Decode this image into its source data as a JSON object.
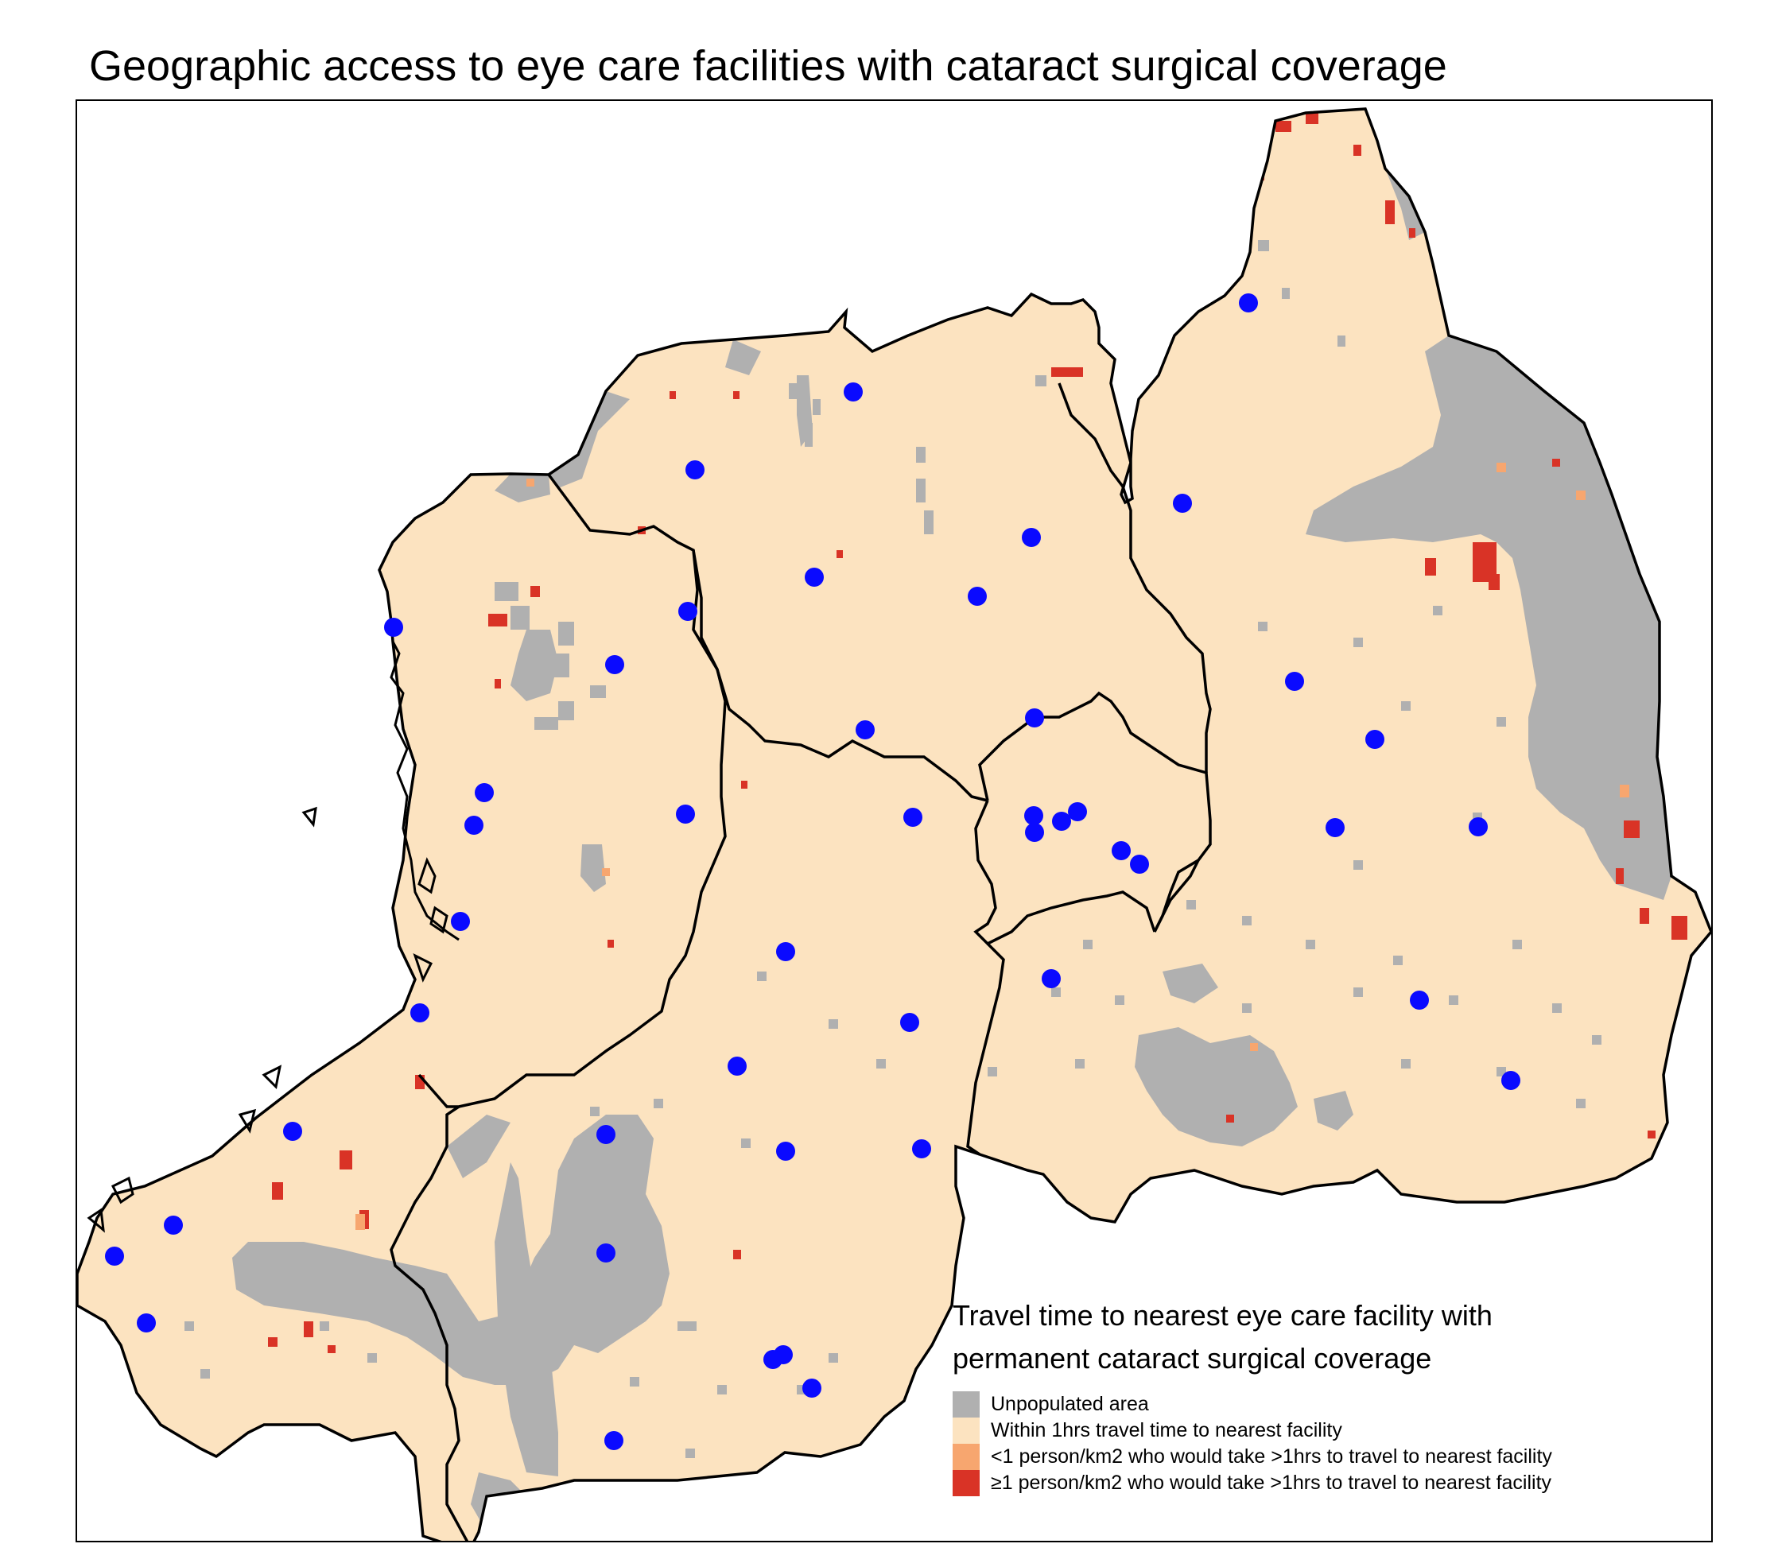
{
  "title": "Geographic access to eye care facilities with cataract surgical coverage",
  "legend": {
    "title_line1": "Travel time to nearest eye care facility with",
    "title_line2": "permanent cataract surgical coverage",
    "items": [
      {
        "label": "Unpopulated area",
        "color": "#b0b0b0"
      },
      {
        "label": "Within 1hrs travel time to nearest facility",
        "color": "#fce3c0"
      },
      {
        "label": "<1 person/km2 who would take >1hrs to travel to nearest facility",
        "color": "#f7a66f"
      },
      {
        "label": "≥1 person/km2 who would take >1hrs to travel to nearest facility",
        "color": "#d93326"
      }
    ]
  },
  "colors": {
    "facility": "#0a0aff",
    "boundary": "#000000",
    "unpopulated": "#b0b0b0",
    "within": "#fce3c0",
    "low_density": "#f7a66f",
    "high_density": "#d93326"
  },
  "facility_icon": "filled-circle-icon"
}
